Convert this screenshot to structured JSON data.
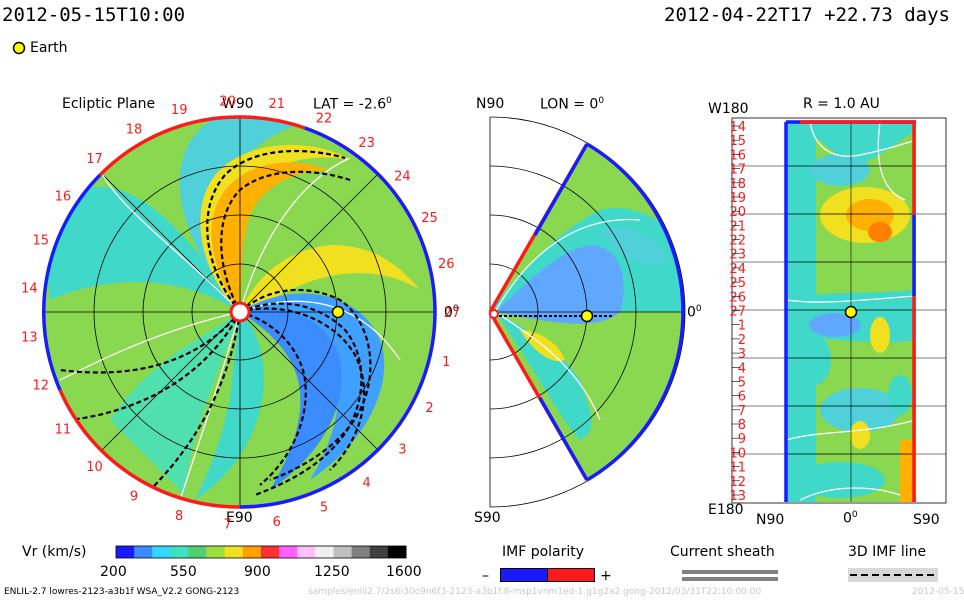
{
  "header": {
    "date_left": "2012-05-15T10:00",
    "date_right": "2012-04-22T17 +22.73 days",
    "earth_label": "Earth"
  },
  "ecliptic": {
    "title": "Ecliptic Plane",
    "top_label": "W90",
    "bottom_label": "E90",
    "right_label": "0",
    "lat_label": "LAT = -2.6",
    "lat_sup": "0",
    "carrington": [
      "19",
      "20",
      "21",
      "22",
      "23",
      "24",
      "25",
      "26",
      "27",
      "1",
      "2",
      "3",
      "4",
      "5",
      "6",
      "7",
      "8",
      "9",
      "10",
      "11",
      "12",
      "13",
      "14",
      "15",
      "16",
      "17",
      "18"
    ]
  },
  "meridional": {
    "top_left": "N90",
    "lon_label": "LON = 0",
    "lon_sup": "0",
    "bottom_left": "S90",
    "right_label": "0",
    "right_sup": "0"
  },
  "map": {
    "title": "R = 1.0 AU",
    "top_left": "W180",
    "bottom_left": "E180",
    "x_labels": [
      "N90",
      "0",
      "S90"
    ],
    "x_sup": "0",
    "y_labels": [
      "14",
      "15",
      "16",
      "17",
      "18",
      "19",
      "20",
      "21",
      "22",
      "23",
      "24",
      "25",
      "26",
      "27",
      "1",
      "2",
      "3",
      "4",
      "5",
      "6",
      "7",
      "8",
      "9",
      "10",
      "11",
      "12",
      "13"
    ]
  },
  "colorbar": {
    "label": "Vr (km/s)",
    "ticks": [
      "200",
      "550",
      "900",
      "1250",
      "1600"
    ],
    "colors": [
      "#1a1aff",
      "#3a8cff",
      "#30d8ff",
      "#40e0c0",
      "#50d070",
      "#9ce040",
      "#f0e020",
      "#ffa000",
      "#ff3030",
      "#ff60ff",
      "#ffc0ff",
      "#f0f0f0",
      "#c0c0c0",
      "#808080",
      "#404040",
      "#000000"
    ]
  },
  "legend": {
    "imf_title": "IMF polarity",
    "imf_minus": "–",
    "imf_plus": "+",
    "sheath_title": "Current sheath",
    "imf3d_title": "3D IMF line"
  },
  "footer": {
    "left": "ENLIL-2.7 lowres-2123-a3b1f WSA_V2.2 GONG-2123",
    "mid": "samples/enlil2.7/2s6i30o9n6f3-2123-a3b1f.8-msp1vnm1ed-1.g1g2a2.gong-2012/03/31T22:10:00:00",
    "right": "2012-05-15"
  }
}
